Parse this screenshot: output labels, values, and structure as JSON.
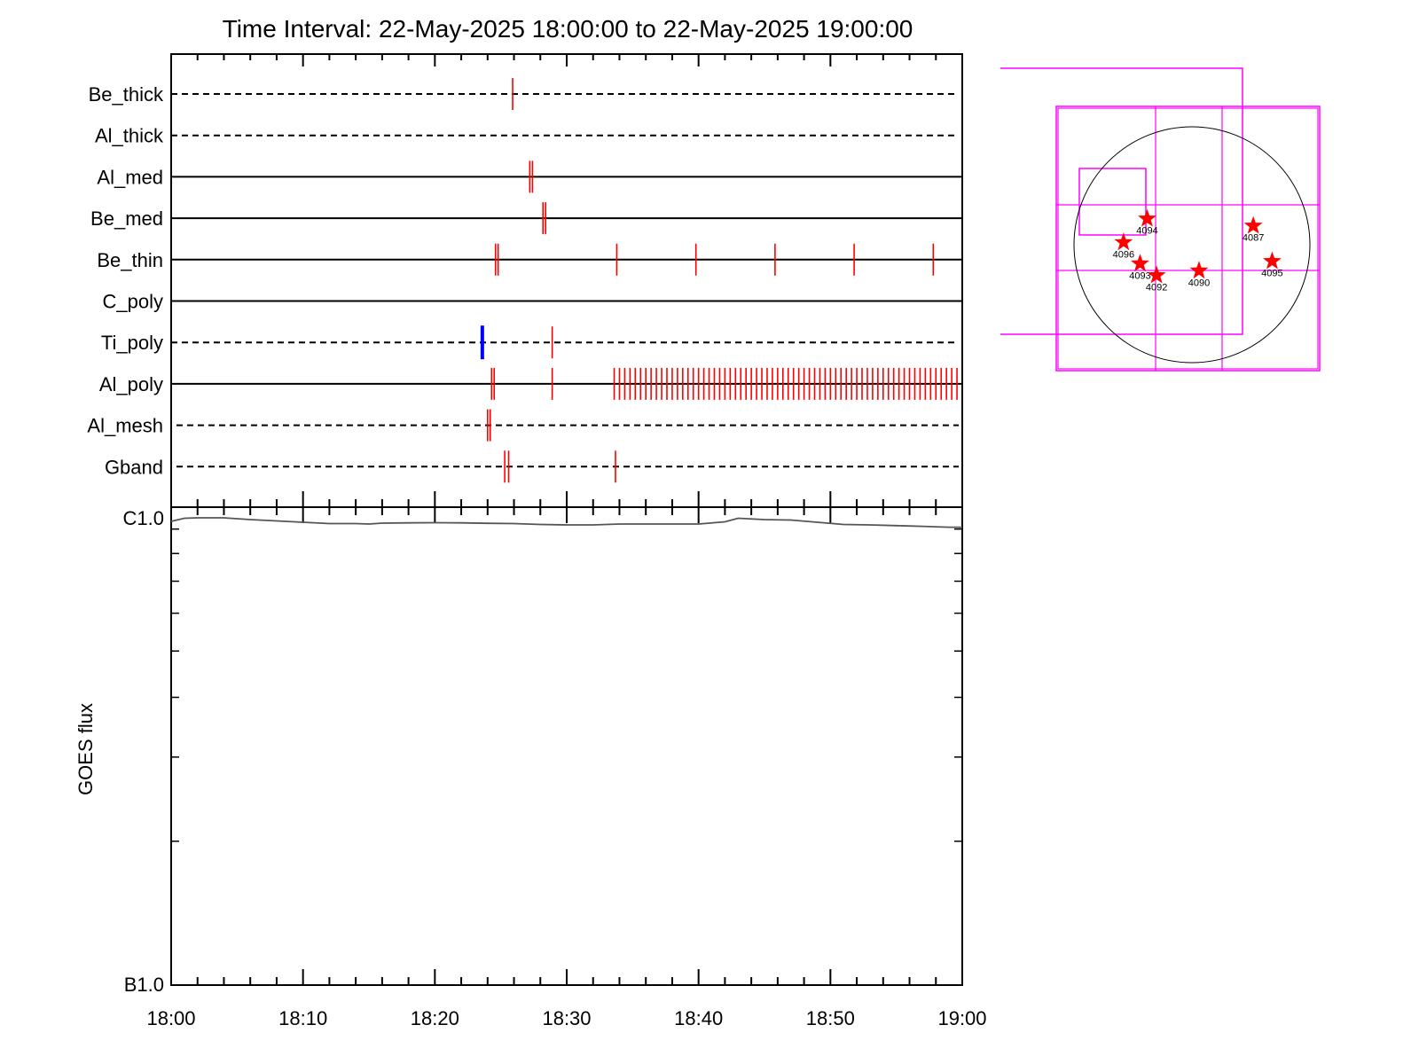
{
  "chart_data": [
    {
      "type": "event-timeline",
      "title": "Time Interval: 22-May-2025 18:00:00 to 22-May-2025 19:00:00",
      "x_range": [
        "18:00",
        "19:00"
      ],
      "rows": [
        {
          "name": "Be_thick",
          "style": "dashed",
          "events": [
            {
              "t": 25.9,
              "color": "#ff0000"
            }
          ]
        },
        {
          "name": "Al_thick",
          "style": "dashed",
          "events": []
        },
        {
          "name": "Al_med",
          "style": "solid",
          "events": [
            {
              "t": 27.2,
              "color": "#ff0000"
            },
            {
              "t": 27.4,
              "color": "#ff0000"
            }
          ]
        },
        {
          "name": "Be_med",
          "style": "solid",
          "events": [
            {
              "t": 28.2,
              "color": "#ff0000"
            },
            {
              "t": 28.4,
              "color": "#ff0000"
            }
          ]
        },
        {
          "name": "Be_thin",
          "style": "solid",
          "events": [
            {
              "t": 24.6,
              "color": "#ff0000"
            },
            {
              "t": 24.8,
              "color": "#ff0000"
            },
            {
              "t": 33.8,
              "color": "#ff0000"
            },
            {
              "t": 39.8,
              "color": "#ff0000"
            },
            {
              "t": 45.8,
              "color": "#ff0000"
            },
            {
              "t": 51.8,
              "color": "#ff0000"
            },
            {
              "t": 57.8,
              "color": "#ff0000"
            }
          ]
        },
        {
          "name": "C_poly",
          "style": "solid",
          "events": []
        },
        {
          "name": "Ti_poly",
          "style": "dashed",
          "events": [
            {
              "t": 23.6,
              "color": "#0000ff",
              "bold": true
            },
            {
              "t": 28.9,
              "color": "#ff0000"
            }
          ]
        },
        {
          "name": "Al_poly",
          "style": "solid",
          "events": [
            {
              "t": 24.3,
              "color": "#ff0000"
            },
            {
              "t": 24.5,
              "color": "#ff0000"
            },
            {
              "t": 28.9,
              "color": "#ff0000"
            }
          ],
          "dense_sequence": {
            "start": 33.6,
            "end": 59.7,
            "step": 0.4,
            "color": "#ff0000"
          }
        },
        {
          "name": "Al_mesh",
          "style": "dashed",
          "events": [
            {
              "t": 24.0,
              "color": "#ff0000"
            },
            {
              "t": 24.2,
              "color": "#ff0000"
            }
          ]
        },
        {
          "name": "Gband",
          "style": "dashed",
          "events": [
            {
              "t": 25.3,
              "color": "#ff0000"
            },
            {
              "t": 25.6,
              "color": "#ff0000"
            },
            {
              "t": 33.7,
              "color": "#ff0000"
            }
          ]
        }
      ]
    },
    {
      "type": "line",
      "ylabel": "GOES flux",
      "y_scale": "log",
      "ylim": [
        1e-07,
        1e-06
      ],
      "ytick_labels": [
        "C1.0",
        "B1.0"
      ],
      "xtick_labels": [
        "18:00",
        "18:10",
        "18:20",
        "18:30",
        "18:40",
        "18:50",
        "19:00"
      ],
      "series": [
        {
          "color": "#555555",
          "x": [
            0,
            1,
            2,
            4,
            6,
            8,
            10,
            12,
            14,
            15,
            16,
            18,
            20,
            22,
            24,
            26,
            28,
            30,
            32,
            34,
            36,
            38,
            40,
            42,
            43,
            45,
            47,
            49,
            51,
            53,
            55,
            57,
            59,
            60
          ],
          "y": [
            9.34e-07,
            9.48e-07,
            9.5e-07,
            9.5e-07,
            9.42e-07,
            9.36e-07,
            9.3e-07,
            9.24e-07,
            9.24e-07,
            9.22e-07,
            9.26e-07,
            9.27e-07,
            9.28e-07,
            9.27e-07,
            9.25e-07,
            9.24e-07,
            9.2e-07,
            9.18e-07,
            9.18e-07,
            9.22e-07,
            9.22e-07,
            9.22e-07,
            9.22e-07,
            9.32e-07,
            9.48e-07,
            9.42e-07,
            9.4e-07,
            9.3e-07,
            9.2e-07,
            9.18e-07,
            9.15e-07,
            9.12e-07,
            9.08e-07,
            9.08e-07
          ]
        }
      ]
    },
    {
      "type": "solar-disk-map",
      "active_regions": [
        {
          "label": "4087",
          "x": 0.52,
          "y": 0.16
        },
        {
          "label": "4094",
          "x": -0.38,
          "y": 0.22
        },
        {
          "label": "4096",
          "x": -0.58,
          "y": 0.02
        },
        {
          "label": "4093",
          "x": -0.44,
          "y": -0.16
        },
        {
          "label": "4092",
          "x": -0.3,
          "y": -0.26
        },
        {
          "label": "4090",
          "x": 0.06,
          "y": -0.22
        },
        {
          "label": "4095",
          "x": 0.68,
          "y": -0.14
        }
      ],
      "marker_color": "#ff0000",
      "fov_color": "#ff00ff"
    }
  ]
}
